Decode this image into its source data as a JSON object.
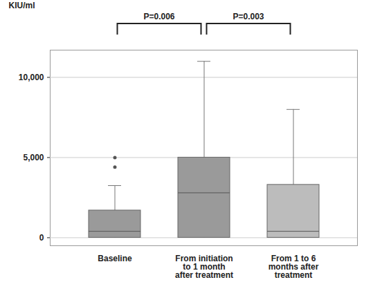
{
  "chart_data": {
    "type": "box",
    "categories": [
      "Baseline",
      "From initiation\nto 1 month\nafter treatment",
      "From 1 to 6\nmonths after\ntreatment"
    ],
    "boxes": [
      {
        "min": 0,
        "q1": 0,
        "median": 400,
        "q3": 1700,
        "max": 3250,
        "outliers": [
          4400,
          5000
        ]
      },
      {
        "min": 0,
        "q1": 0,
        "median": 2800,
        "q3": 5000,
        "max": 11000,
        "outliers": []
      },
      {
        "min": 0,
        "q1": 0,
        "median": 400,
        "q3": 3300,
        "max": 8000,
        "outliers": []
      }
    ],
    "colors": [
      "#9a9a9a",
      "#9a9a9a",
      "#bcbcbc"
    ],
    "ylabel": "KIU/ml",
    "ylim": [
      -500,
      11700
    ],
    "yticks": [
      0,
      {
        "value": 5000,
        "label": "5,000"
      },
      {
        "value": 10000,
        "label": "10,000"
      }
    ],
    "grid": true,
    "comparisons": [
      {
        "between": [
          0,
          1
        ],
        "label": "P=0.006"
      },
      {
        "between": [
          1,
          2
        ],
        "label": "P=0.003"
      }
    ]
  }
}
